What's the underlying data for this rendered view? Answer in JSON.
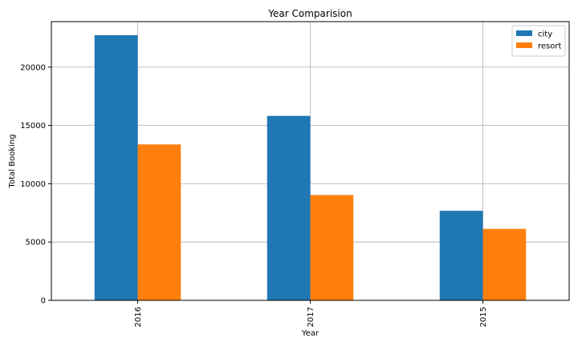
{
  "chart_data": {
    "type": "bar",
    "title": "Year Comparision",
    "xlabel": "Year",
    "ylabel": "Total Booking",
    "categories": [
      "2016",
      "2017",
      "2015"
    ],
    "series": [
      {
        "name": "city",
        "values": [
          22733,
          15817,
          7678
        ],
        "color": "#1f77b4"
      },
      {
        "name": "resort",
        "values": [
          13371,
          9033,
          6129
        ],
        "color": "#ff7f0e"
      }
    ],
    "ylim": [
      0,
      23900
    ],
    "yticks": [
      0,
      5000,
      10000,
      15000,
      20000
    ],
    "grid": true,
    "legend": "top-right",
    "x_tick_rotation": "vertical"
  }
}
